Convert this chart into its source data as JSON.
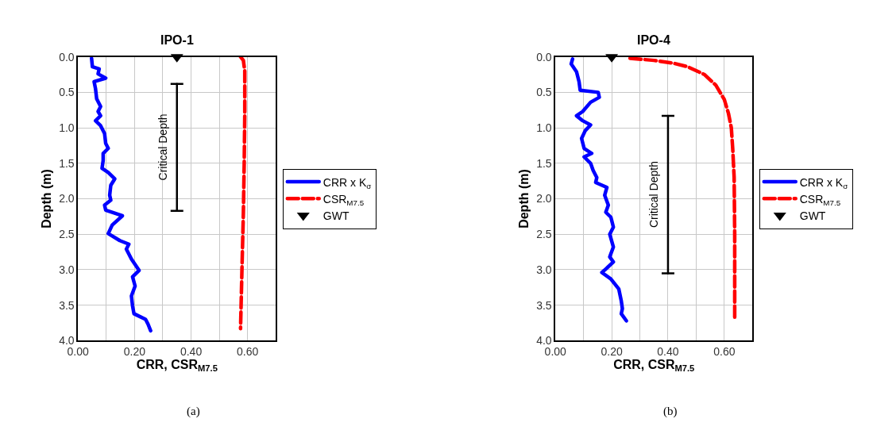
{
  "chart_data": [
    {
      "type": "line",
      "title": "IPO-1",
      "xlabel": "CRR, CSR$_{M7.5}$",
      "ylabel": "Depth (m)",
      "xlim": [
        0,
        0.7
      ],
      "xticks": [
        {
          "value": 0,
          "label": "0.00"
        },
        {
          "value": 0.1,
          "label": null
        },
        {
          "value": 0.2,
          "label": "0.20"
        },
        {
          "value": 0.3,
          "label": null
        },
        {
          "value": 0.4,
          "label": "0.40"
        },
        {
          "value": 0.5,
          "label": null
        },
        {
          "value": 0.6,
          "label": "0.60"
        },
        {
          "value": 0.7,
          "label": null
        }
      ],
      "ylim": [
        4,
        0
      ],
      "yticks": [
        {
          "value": 0,
          "label": "0.0"
        },
        {
          "value": 0.5,
          "label": "0.5"
        },
        {
          "value": 1,
          "label": "1.0"
        },
        {
          "value": 1.5,
          "label": "1.5"
        },
        {
          "value": 2,
          "label": "2.0"
        },
        {
          "value": 2.5,
          "label": "2.5"
        },
        {
          "value": 3,
          "label": "3.0"
        },
        {
          "value": 3.5,
          "label": "3.5"
        },
        {
          "value": 4,
          "label": "4.0"
        }
      ],
      "grid": true,
      "legend": "right",
      "series": [
        {
          "name": "CRR x K$_{σ}$",
          "color": "#0000ff",
          "line_style": "solid",
          "x": [
            0.048,
            0.051,
            0.075,
            0.071,
            0.098,
            0.057,
            0.062,
            0.066,
            0.08,
            0.071,
            0.08,
            0.062,
            0.08,
            0.094,
            0.098,
            0.107,
            0.089,
            0.089,
            0.085,
            0.107,
            0.13,
            0.116,
            0.112,
            0.116,
            0.094,
            0.098,
            0.157,
            0.121,
            0.107,
            0.148,
            0.18,
            0.171,
            0.189,
            0.216,
            0.193,
            0.202,
            0.189,
            0.193,
            0.198,
            0.239,
            0.248,
            0.257
          ],
          "values": [
            0.02,
            0.14,
            0.17,
            0.24,
            0.3,
            0.35,
            0.45,
            0.59,
            0.7,
            0.77,
            0.83,
            0.9,
            0.97,
            1.08,
            1.22,
            1.29,
            1.36,
            1.46,
            1.57,
            1.63,
            1.72,
            1.81,
            1.95,
            2.02,
            2.09,
            2.16,
            2.24,
            2.37,
            2.49,
            2.59,
            2.64,
            2.71,
            2.85,
            3.01,
            3.1,
            3.23,
            3.37,
            3.51,
            3.62,
            3.7,
            3.77,
            3.86
          ]
        },
        {
          "name": "CSR$_{M7.5}$",
          "color": "#ff0000",
          "line_style": "dashed",
          "x": [
            0.575,
            0.585,
            0.59,
            0.59,
            0.588,
            0.585,
            0.58,
            0.575
          ],
          "values": [
            0.0,
            0.05,
            0.2,
            0.8,
            1.5,
            2.2,
            3.0,
            3.83
          ]
        },
        {
          "name": "GWT",
          "color": "#000000",
          "type": "scatter",
          "marker": "triangle",
          "x": [
            0.35
          ],
          "values": [
            0.0
          ]
        },
        {
          "color": "#000000",
          "line_style": "solid",
          "x": [
            0.35,
            0.35
          ],
          "values": [
            0.38,
            2.17
          ],
          "errors": [
            0,
            0
          ]
        }
      ],
      "annotations": [
        "Critical Depth",
        "(a)"
      ]
    },
    {
      "type": "line",
      "title": "IPO-4",
      "xlabel": "CRR, CSR$_{M7.5}$",
      "ylabel": "Depth (m)",
      "xlim": [
        0,
        0.7
      ],
      "xticks": [
        {
          "value": 0,
          "label": "0.00"
        },
        {
          "value": 0.1,
          "label": null
        },
        {
          "value": 0.2,
          "label": "0.20"
        },
        {
          "value": 0.3,
          "label": null
        },
        {
          "value": 0.4,
          "label": "0.40"
        },
        {
          "value": 0.5,
          "label": null
        },
        {
          "value": 0.6,
          "label": "0.60"
        },
        {
          "value": 0.7,
          "label": null
        }
      ],
      "ylim": [
        4,
        0
      ],
      "yticks": [
        {
          "value": 0,
          "label": "0.0"
        },
        {
          "value": 0.5,
          "label": "0.5"
        },
        {
          "value": 1,
          "label": "1.0"
        },
        {
          "value": 1.5,
          "label": "1.5"
        },
        {
          "value": 2,
          "label": "2.0"
        },
        {
          "value": 2.5,
          "label": "2.5"
        },
        {
          "value": 3,
          "label": "3.0"
        },
        {
          "value": 3.5,
          "label": "3.5"
        },
        {
          "value": 4,
          "label": "4.0"
        }
      ],
      "grid": true,
      "legend": "right",
      "series": [
        {
          "name": "CRR x K$_{σ}$",
          "color": "#0000ff",
          "line_style": "solid",
          "x": [
            0.061,
            0.056,
            0.075,
            0.084,
            0.088,
            0.152,
            0.156,
            0.125,
            0.097,
            0.075,
            0.097,
            0.125,
            0.106,
            0.093,
            0.102,
            0.129,
            0.102,
            0.125,
            0.134,
            0.147,
            0.143,
            0.183,
            0.175,
            0.188,
            0.179,
            0.197,
            0.206,
            0.193,
            0.206,
            0.193,
            0.206,
            0.179,
            0.165,
            0.197,
            0.225,
            0.234,
            0.238,
            0.234,
            0.252
          ],
          "values": [
            0.03,
            0.1,
            0.21,
            0.35,
            0.47,
            0.5,
            0.57,
            0.64,
            0.77,
            0.83,
            0.9,
            0.96,
            1.04,
            1.15,
            1.29,
            1.36,
            1.41,
            1.5,
            1.6,
            1.7,
            1.77,
            1.84,
            1.95,
            2.09,
            2.19,
            2.26,
            2.4,
            2.5,
            2.68,
            2.82,
            2.89,
            2.99,
            3.04,
            3.13,
            3.27,
            3.44,
            3.55,
            3.62,
            3.72
          ]
        },
        {
          "name": "CSR$_{M7.5}$",
          "color": "#ff0000",
          "line_style": "dashed",
          "x": [
            0.265,
            0.35,
            0.42,
            0.47,
            0.53,
            0.57,
            0.6,
            0.615,
            0.625,
            0.63,
            0.635,
            0.637,
            0.637
          ],
          "values": [
            0.02,
            0.05,
            0.09,
            0.14,
            0.25,
            0.4,
            0.6,
            0.8,
            1.0,
            1.3,
            1.7,
            2.5,
            3.72
          ]
        },
        {
          "name": "GWT",
          "color": "#000000",
          "type": "scatter",
          "marker": "triangle",
          "x": [
            0.2
          ],
          "values": [
            0.0
          ]
        },
        {
          "color": "#000000",
          "line_style": "solid",
          "x": [
            0.4,
            0.4
          ],
          "values": [
            0.83,
            3.05
          ],
          "errors": [
            0,
            0
          ]
        }
      ],
      "annotations": [
        "Critical Depth",
        "(b)"
      ]
    }
  ]
}
